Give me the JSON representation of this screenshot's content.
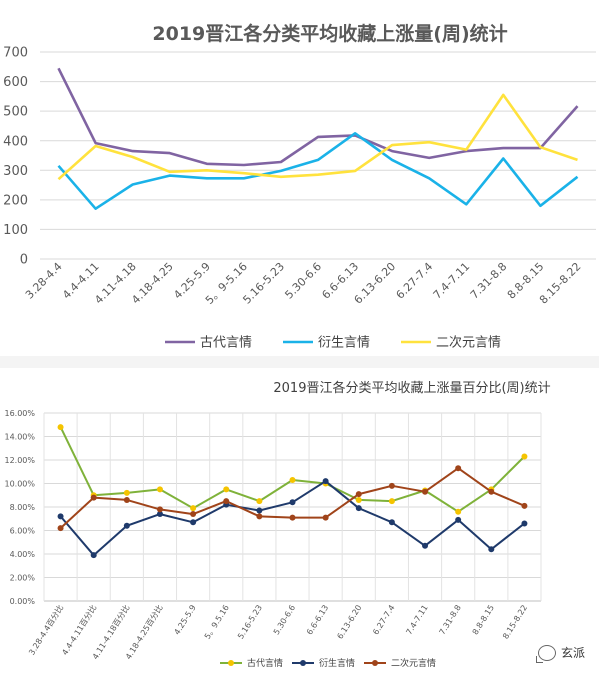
{
  "chart_data": [
    {
      "type": "line",
      "title": "2019晋江各分类平均收藏上涨量(周)统计",
      "categories": [
        "3.28-4.4",
        "4.4-4.11",
        "4.11-4.18",
        "4.18-4.25",
        "4.25-5.9",
        "5。9-5.16",
        "5.16-5.23",
        "5.30-6.6",
        "6.6-6.13",
        "6.13-6.20",
        "6.27-7.4",
        "7.4-7.11",
        "7.31-8.8",
        "8.8-8.15",
        "8.15-8.22"
      ],
      "ylim": [
        0,
        700
      ],
      "yticks": [
        "0",
        "100",
        "200",
        "300",
        "400",
        "500",
        "600",
        "700"
      ],
      "grid": true,
      "legend": "bottom",
      "series": [
        {
          "name": "古代言情",
          "color": "#8064a2",
          "values": [
            645,
            392,
            365,
            358,
            322,
            318,
            328,
            413,
            418,
            365,
            342,
            365,
            375,
            375,
            517
          ]
        },
        {
          "name": "衍生言情",
          "color": "#1ab2e8",
          "values": [
            315,
            170,
            252,
            282,
            273,
            273,
            298,
            335,
            425,
            335,
            273,
            185,
            340,
            180,
            278
          ]
        },
        {
          "name": "二次元言情",
          "color": "#ffe23d",
          "values": [
            270,
            382,
            345,
            295,
            300,
            290,
            278,
            285,
            298,
            385,
            395,
            370,
            555,
            378,
            335
          ]
        }
      ]
    },
    {
      "type": "line",
      "title": "2019晋江各分类平均收藏上涨量百分比(周)统计",
      "categories": [
        "3.28-4.4百分比",
        "4.4-4.11百分比",
        "4.11-4.18百分比",
        "4.18-4.25百分比",
        "4.25-5.9",
        "5。9.5.16",
        "5.16-5.23",
        "5.30-6.6",
        "6.6-6.13",
        "6.13-6.20",
        "6.27-7.4",
        "7.4-7.11",
        "7.31-8.8",
        "8.8-8.15",
        "8.15-8.22"
      ],
      "ylim": [
        0,
        16
      ],
      "yticks": [
        "0.00%",
        "2.00%",
        "4.00%",
        "6.00%",
        "8.00%",
        "10.00%",
        "12.00%",
        "14.00%",
        "16.00%"
      ],
      "grid": true,
      "legend": "bottom",
      "series": [
        {
          "name": "古代言情",
          "color": "#7fb23a",
          "marker": "#f5c400",
          "values": [
            14.8,
            9.0,
            9.2,
            9.5,
            7.9,
            9.5,
            8.5,
            10.3,
            10.0,
            8.6,
            8.5,
            9.4,
            7.6,
            9.5,
            12.3
          ]
        },
        {
          "name": "衍生言情",
          "color": "#1f3a6b",
          "marker": "#1f3a6b",
          "values": [
            7.2,
            3.9,
            6.4,
            7.4,
            6.7,
            8.2,
            7.7,
            8.4,
            10.2,
            7.9,
            6.7,
            4.7,
            6.9,
            4.4,
            6.6
          ]
        },
        {
          "name": "二次元言情",
          "color": "#a0441a",
          "marker": "#a0441a",
          "values": [
            6.2,
            8.8,
            8.6,
            7.8,
            7.4,
            8.5,
            7.2,
            7.1,
            7.1,
            9.1,
            9.8,
            9.3,
            11.3,
            9.3,
            8.1
          ]
        }
      ]
    }
  ],
  "watermark": {
    "icon": "wechat-bubble-icon",
    "text": "玄派"
  }
}
